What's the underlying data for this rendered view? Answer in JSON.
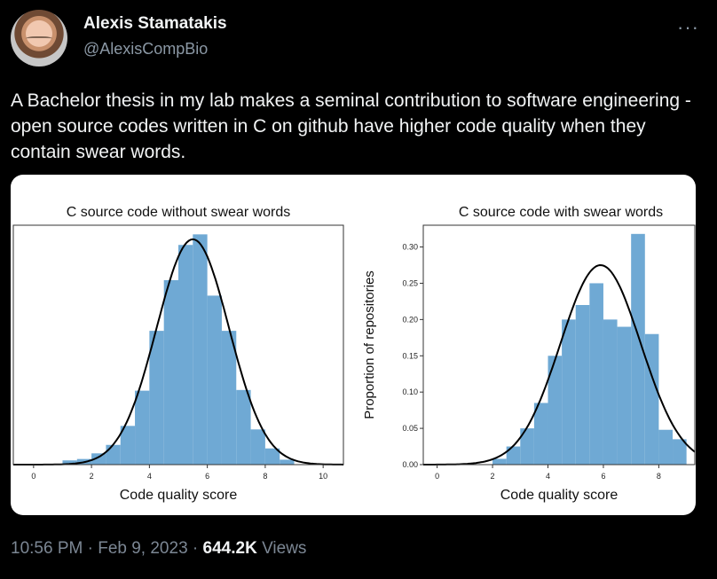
{
  "tweet": {
    "author_name": "Alexis Stamatakis",
    "author_handle": "@AlexisCompBio",
    "text": "A Bachelor thesis in my lab makes a seminal contribution to software engineering - open source codes written in C on github have higher code quality when they contain swear words.",
    "more_icon": "more-icon",
    "time": "10:56 PM",
    "separator": "·",
    "date": "Feb 9, 2023",
    "views_count": "644.2K",
    "views_label": "Views"
  },
  "colors": {
    "background": "#000000",
    "histogram": "#6fa9d4",
    "curve": "#000000"
  },
  "chart_data": [
    {
      "type": "histogram",
      "title": "C source code without swear words",
      "xlabel": "Code quality score",
      "ylabel": "",
      "x_ticks": [
        0,
        2,
        4,
        6,
        8,
        10
      ],
      "xlim": [
        -0.7,
        10.7
      ],
      "ylim": [
        0,
        0.34
      ],
      "bars": [
        {
          "x0": 1.0,
          "x1": 1.5,
          "y": 0.006
        },
        {
          "x0": 1.5,
          "x1": 2.0,
          "y": 0.008
        },
        {
          "x0": 2.0,
          "x1": 2.5,
          "y": 0.016
        },
        {
          "x0": 2.5,
          "x1": 3.0,
          "y": 0.028
        },
        {
          "x0": 3.0,
          "x1": 3.5,
          "y": 0.055
        },
        {
          "x0": 3.5,
          "x1": 4.0,
          "y": 0.105
        },
        {
          "x0": 4.0,
          "x1": 4.5,
          "y": 0.19
        },
        {
          "x0": 4.5,
          "x1": 5.0,
          "y": 0.262
        },
        {
          "x0": 5.0,
          "x1": 5.5,
          "y": 0.312
        },
        {
          "x0": 5.5,
          "x1": 6.0,
          "y": 0.327
        },
        {
          "x0": 6.0,
          "x1": 6.5,
          "y": 0.24
        },
        {
          "x0": 6.5,
          "x1": 7.0,
          "y": 0.19
        },
        {
          "x0": 7.0,
          "x1": 7.5,
          "y": 0.106
        },
        {
          "x0": 7.5,
          "x1": 8.0,
          "y": 0.05
        },
        {
          "x0": 8.0,
          "x1": 8.5,
          "y": 0.023
        },
        {
          "x0": 8.5,
          "x1": 9.0,
          "y": 0.007
        }
      ],
      "curve": {
        "type": "normal",
        "mean": 5.5,
        "sd": 1.25,
        "peak": 0.32
      }
    },
    {
      "type": "histogram",
      "title": "C source code with swear words",
      "xlabel": "Code quality score",
      "ylabel": "Proportion of repositories",
      "x_ticks": [
        0,
        2,
        4,
        6,
        8
      ],
      "y_ticks": [
        0.0,
        0.05,
        0.1,
        0.15,
        0.2,
        0.25,
        0.3
      ],
      "y_tick_labels": [
        "0.00",
        "0.05",
        "0.10",
        "0.15",
        "0.20",
        "0.25",
        "0.30"
      ],
      "xlim": [
        -0.5,
        9.3
      ],
      "ylim": [
        0,
        0.33
      ],
      "bars": [
        {
          "x0": 2.0,
          "x1": 2.5,
          "y": 0.008
        },
        {
          "x0": 2.5,
          "x1": 3.0,
          "y": 0.025
        },
        {
          "x0": 3.0,
          "x1": 3.5,
          "y": 0.05
        },
        {
          "x0": 3.5,
          "x1": 4.0,
          "y": 0.085
        },
        {
          "x0": 4.0,
          "x1": 4.5,
          "y": 0.15
        },
        {
          "x0": 4.5,
          "x1": 5.0,
          "y": 0.2
        },
        {
          "x0": 5.0,
          "x1": 5.5,
          "y": 0.22
        },
        {
          "x0": 5.5,
          "x1": 6.0,
          "y": 0.25
        },
        {
          "x0": 6.0,
          "x1": 6.5,
          "y": 0.2
        },
        {
          "x0": 6.5,
          "x1": 7.0,
          "y": 0.19
        },
        {
          "x0": 7.0,
          "x1": 7.5,
          "y": 0.318
        },
        {
          "x0": 7.5,
          "x1": 8.0,
          "y": 0.18
        },
        {
          "x0": 8.0,
          "x1": 8.5,
          "y": 0.048
        },
        {
          "x0": 8.5,
          "x1": 9.0,
          "y": 0.035
        }
      ],
      "curve": {
        "type": "normal",
        "mean": 5.9,
        "sd": 1.45,
        "peak": 0.275
      }
    }
  ]
}
